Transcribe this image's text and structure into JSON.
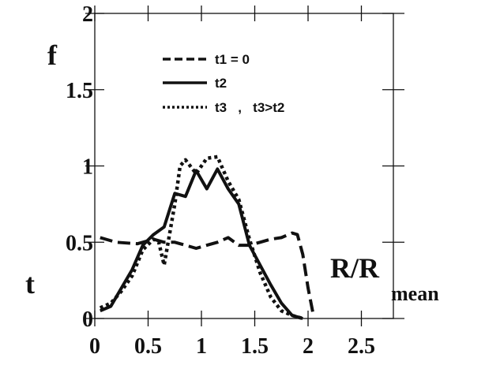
{
  "chart_data": {
    "type": "line",
    "ylabel_top": "f",
    "ylabel_bottom": "t",
    "xlabel_main": "R/R",
    "xlabel_sub": "mean",
    "xlim": [
      0,
      2.8
    ],
    "ylim": [
      0,
      2
    ],
    "x_ticks": [
      "0",
      "0.5",
      "1",
      "1.5",
      "2",
      "2.5"
    ],
    "y_ticks": [
      "0",
      "0.5",
      "1",
      "1.5",
      "2"
    ],
    "x_tick_values": [
      0,
      0.5,
      1,
      1.5,
      2,
      2.5
    ],
    "y_tick_values": [
      0,
      0.5,
      1,
      1.5,
      2
    ],
    "grid": false,
    "legend_position": "top-center",
    "series": [
      {
        "name": "t1  = 0",
        "style": "dashed",
        "x": [
          0.05,
          0.2,
          0.4,
          0.55,
          0.65,
          0.75,
          0.85,
          0.95,
          1.05,
          1.15,
          1.25,
          1.35,
          1.45,
          1.55,
          1.65,
          1.75,
          1.85,
          1.9,
          1.95,
          2.0,
          2.05
        ],
        "y": [
          0.53,
          0.5,
          0.49,
          0.52,
          0.5,
          0.5,
          0.48,
          0.46,
          0.48,
          0.5,
          0.53,
          0.48,
          0.48,
          0.5,
          0.52,
          0.53,
          0.56,
          0.55,
          0.42,
          0.2,
          0.02
        ]
      },
      {
        "name": "t2",
        "style": "solid",
        "x": [
          0.05,
          0.15,
          0.25,
          0.35,
          0.45,
          0.55,
          0.65,
          0.75,
          0.85,
          0.95,
          1.05,
          1.15,
          1.25,
          1.35,
          1.45,
          1.55,
          1.65,
          1.75,
          1.85,
          1.95
        ],
        "y": [
          0.05,
          0.08,
          0.2,
          0.32,
          0.48,
          0.55,
          0.6,
          0.82,
          0.8,
          0.97,
          0.85,
          0.98,
          0.85,
          0.75,
          0.48,
          0.35,
          0.22,
          0.1,
          0.02,
          0.0
        ]
      },
      {
        "name": "t3   ,   t3>t2",
        "style": "dotted",
        "x": [
          0.05,
          0.15,
          0.25,
          0.35,
          0.45,
          0.55,
          0.6,
          0.65,
          0.75,
          0.8,
          0.85,
          0.95,
          1.05,
          1.15,
          1.25,
          1.35,
          1.45,
          1.55,
          1.65,
          1.75,
          1.85,
          1.95
        ],
        "y": [
          0.07,
          0.1,
          0.18,
          0.28,
          0.45,
          0.52,
          0.5,
          0.35,
          0.75,
          1.0,
          1.04,
          0.95,
          1.05,
          1.06,
          0.9,
          0.78,
          0.52,
          0.3,
          0.14,
          0.05,
          0.02,
          0.0
        ]
      }
    ]
  }
}
